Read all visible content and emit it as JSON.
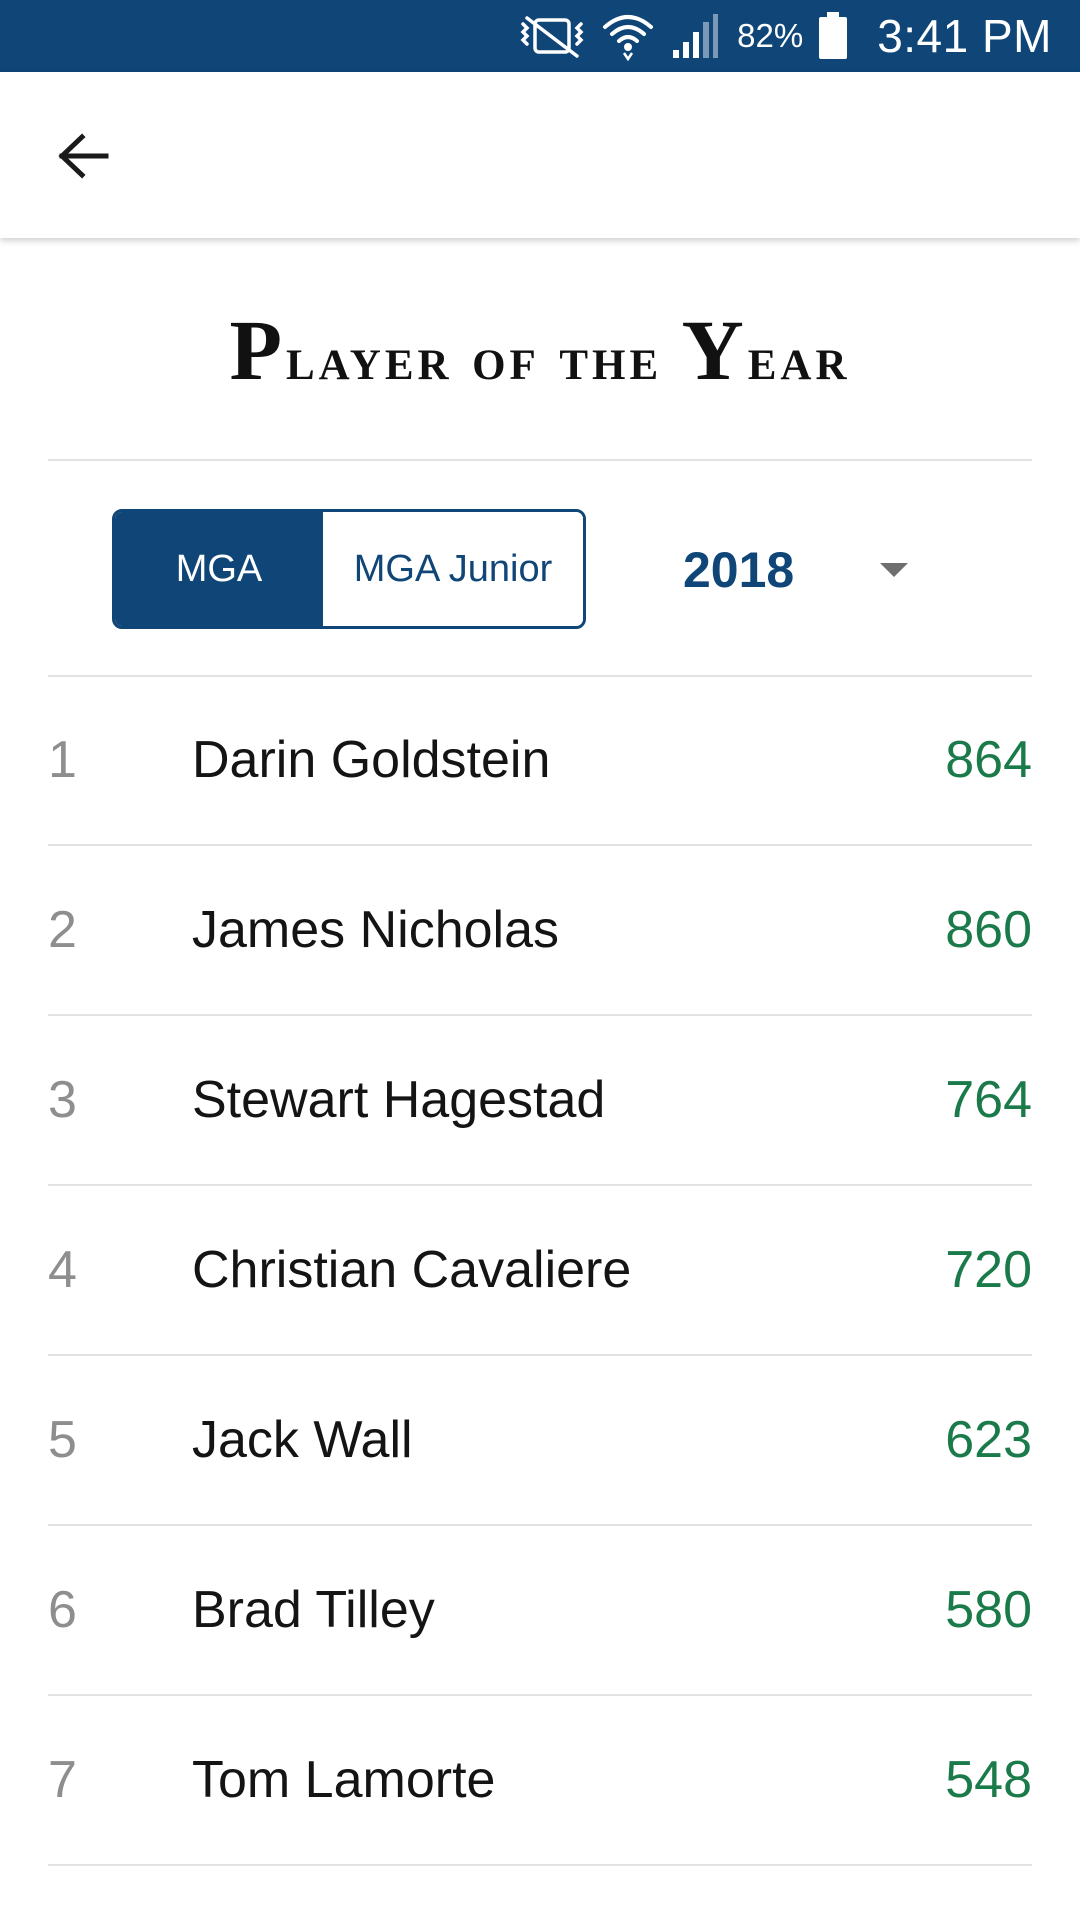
{
  "status_bar": {
    "icons": [
      "vibrate-muted-icon",
      "wifi-icon",
      "signal-icon",
      "battery-icon"
    ],
    "battery_percent": "82%",
    "time": "3:41 PM"
  },
  "app_bar": {
    "back_icon": "arrow-left-icon"
  },
  "page": {
    "title_words": [
      {
        "cap": "P",
        "rest": "layer"
      },
      {
        "cap": "o",
        "rest": "f"
      },
      {
        "cap": "t",
        "rest": "he"
      },
      {
        "cap": "Y",
        "rest": "ear"
      }
    ]
  },
  "filters": {
    "tabs": [
      {
        "label": "MGA",
        "active": true
      },
      {
        "label": "MGA Junior",
        "active": false
      }
    ],
    "year": {
      "value": "2018",
      "caret_icon": "dropdown-triangle-icon"
    }
  },
  "leaderboard": {
    "rows": [
      {
        "rank": "1",
        "name": "Darin Goldstein",
        "points": "864"
      },
      {
        "rank": "2",
        "name": "James Nicholas",
        "points": "860"
      },
      {
        "rank": "3",
        "name": "Stewart Hagestad",
        "points": "764"
      },
      {
        "rank": "4",
        "name": "Christian Cavaliere",
        "points": "720"
      },
      {
        "rank": "5",
        "name": "Jack Wall",
        "points": "623"
      },
      {
        "rank": "6",
        "name": "Brad Tilley",
        "points": "580"
      },
      {
        "rank": "7",
        "name": "Tom Lamorte",
        "points": "548"
      }
    ]
  },
  "colors": {
    "brand_navy": "#0f4677",
    "points_green": "#1b7a4a",
    "rank_grey": "#8e8e8e",
    "divider": "#e2e2e2"
  }
}
